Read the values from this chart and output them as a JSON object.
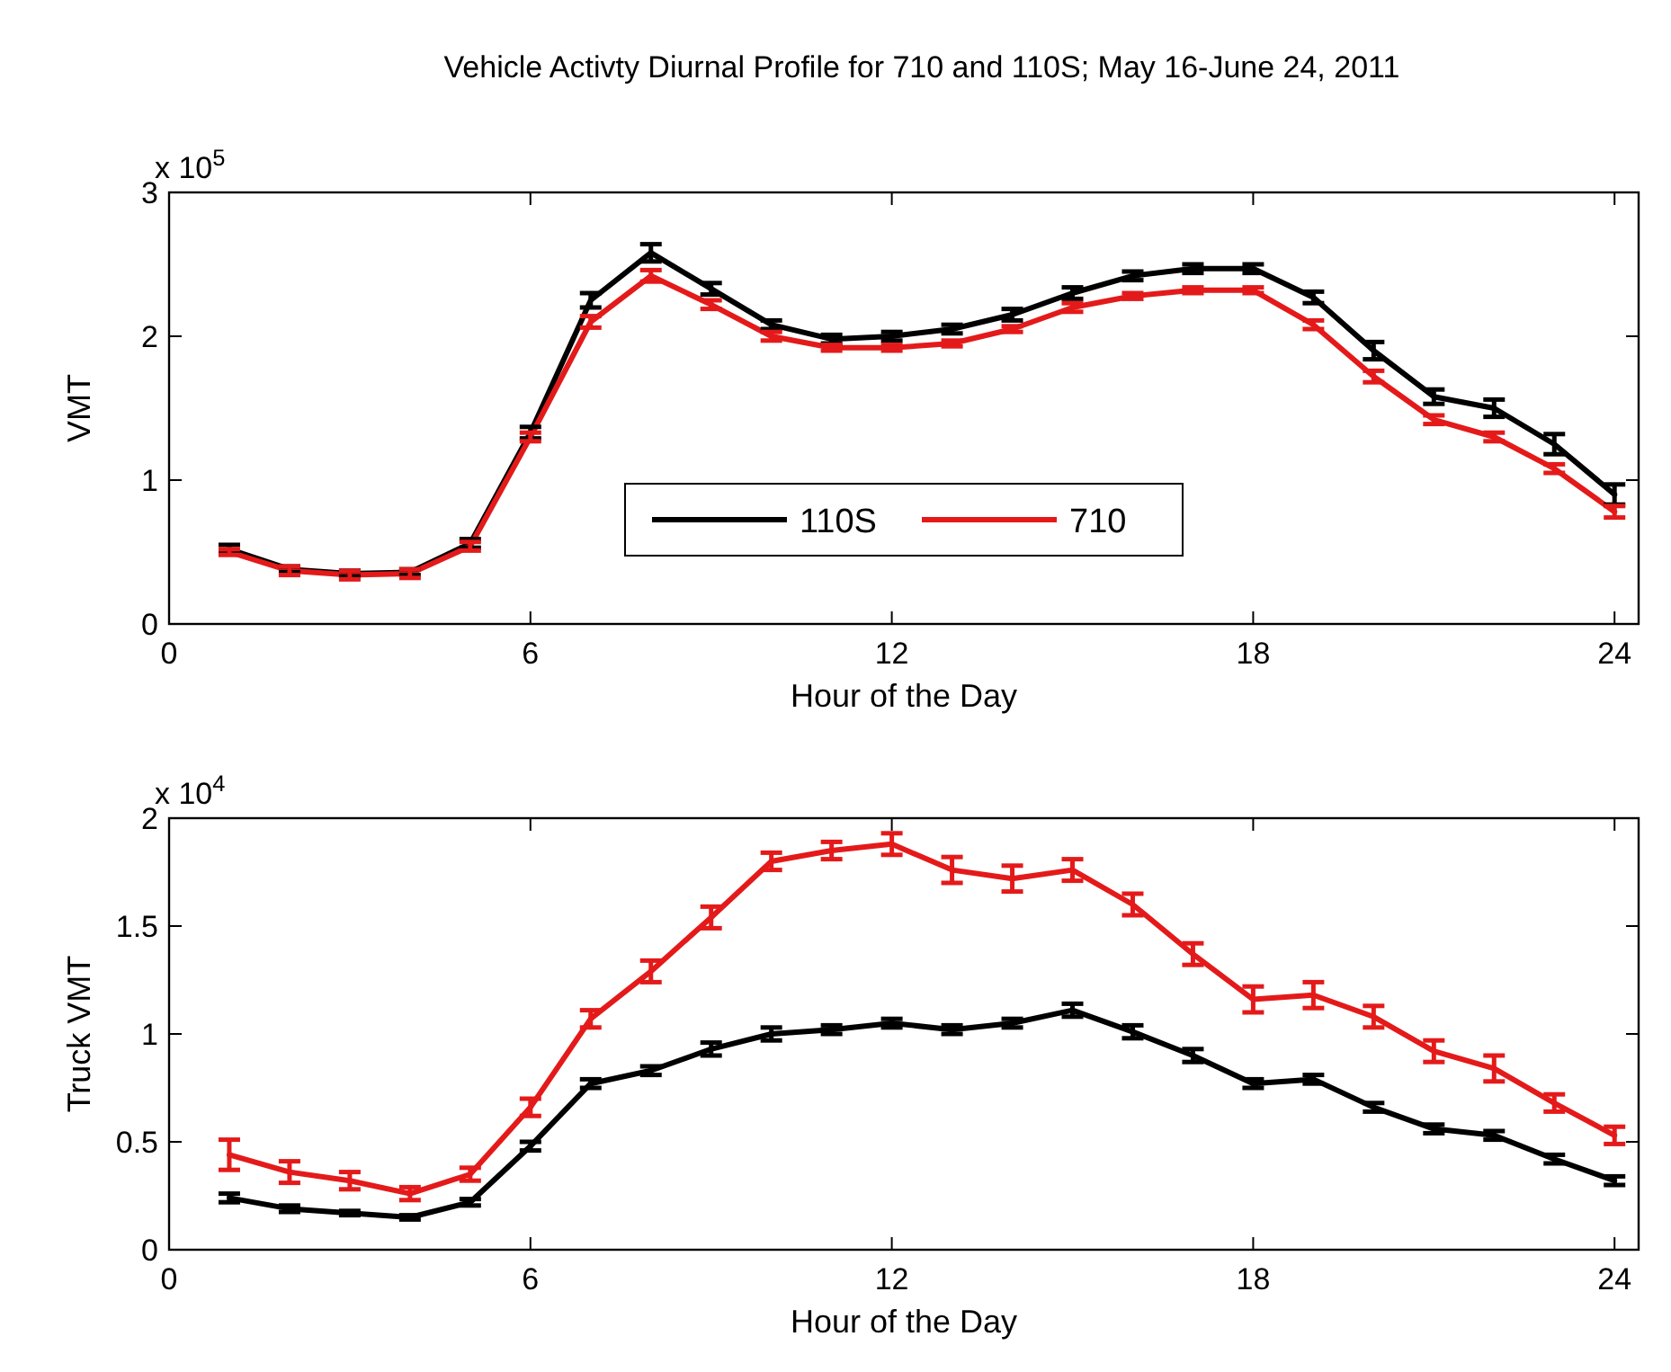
{
  "chart_data": [
    {
      "type": "line",
      "title": "Vehicle Activty Diurnal Profile for 710 and 110S; May 16-June 24, 2011",
      "xlabel": "Hour of the Day",
      "ylabel": "VMT",
      "annotations": [
        "x 10$^{5}$"
      ],
      "x": [
        1,
        2,
        3,
        4,
        5,
        6,
        7,
        8,
        9,
        10,
        11,
        12,
        13,
        14,
        15,
        16,
        17,
        18,
        19,
        20,
        21,
        22,
        23,
        24
      ],
      "xlim": [
        0,
        24.4
      ],
      "xticks": [
        0,
        6,
        12,
        18,
        24
      ],
      "ylim": [
        0,
        3
      ],
      "yticks": [
        0,
        1,
        2,
        3
      ],
      "legend": "bottom",
      "grid": false,
      "marker": "none",
      "line_style": "solid",
      "series": [
        {
          "name": "110S",
          "color": "#000000",
          "values": [
            0.52,
            0.38,
            0.35,
            0.36,
            0.56,
            1.33,
            2.25,
            2.58,
            2.33,
            2.08,
            1.98,
            2.0,
            2.05,
            2.15,
            2.3,
            2.42,
            2.47,
            2.47,
            2.27,
            1.9,
            1.58,
            1.5,
            1.25,
            0.9
          ],
          "errors": [
            0.03,
            0.02,
            0.02,
            0.02,
            0.03,
            0.04,
            0.05,
            0.06,
            0.04,
            0.03,
            0.03,
            0.03,
            0.03,
            0.04,
            0.04,
            0.03,
            0.03,
            0.03,
            0.04,
            0.06,
            0.05,
            0.06,
            0.07,
            0.07
          ]
        },
        {
          "name": "710",
          "color": "#e41a1a",
          "values": [
            0.5,
            0.37,
            0.34,
            0.35,
            0.54,
            1.3,
            2.1,
            2.42,
            2.22,
            2.0,
            1.92,
            1.92,
            1.95,
            2.05,
            2.2,
            2.28,
            2.32,
            2.32,
            2.08,
            1.72,
            1.42,
            1.3,
            1.08,
            0.78
          ],
          "errors": [
            0.02,
            0.03,
            0.03,
            0.03,
            0.03,
            0.03,
            0.04,
            0.04,
            0.03,
            0.03,
            0.02,
            0.02,
            0.02,
            0.02,
            0.03,
            0.02,
            0.02,
            0.02,
            0.03,
            0.04,
            0.03,
            0.03,
            0.03,
            0.04
          ]
        }
      ]
    },
    {
      "type": "line",
      "xlabel": "Hour of the Day",
      "ylabel": "Truck VMT",
      "annotations": [
        "x 10$^{4}$"
      ],
      "x": [
        1,
        2,
        3,
        4,
        5,
        6,
        7,
        8,
        9,
        10,
        11,
        12,
        13,
        14,
        15,
        16,
        17,
        18,
        19,
        20,
        21,
        22,
        23,
        24
      ],
      "xlim": [
        0,
        24.4
      ],
      "xticks": [
        0,
        6,
        12,
        18,
        24
      ],
      "ylim": [
        0,
        2
      ],
      "yticks": [
        0,
        0.5,
        1,
        1.5,
        2
      ],
      "grid": false,
      "marker": "none",
      "line_style": "solid",
      "series": [
        {
          "color": "#000000",
          "values": [
            0.24,
            0.19,
            0.17,
            0.15,
            0.22,
            0.48,
            0.77,
            0.83,
            0.93,
            1.0,
            1.02,
            1.05,
            1.02,
            1.05,
            1.11,
            1.01,
            0.9,
            0.77,
            0.79,
            0.66,
            0.56,
            0.53,
            0.42,
            0.32
          ],
          "errors": [
            0.02,
            0.015,
            0.01,
            0.01,
            0.015,
            0.02,
            0.02,
            0.02,
            0.03,
            0.03,
            0.02,
            0.02,
            0.02,
            0.02,
            0.03,
            0.03,
            0.03,
            0.02,
            0.02,
            0.02,
            0.02,
            0.02,
            0.02,
            0.02
          ]
        },
        {
          "color": "#e41a1a",
          "values": [
            0.44,
            0.36,
            0.32,
            0.26,
            0.35,
            0.66,
            1.07,
            1.29,
            1.54,
            1.8,
            1.85,
            1.88,
            1.76,
            1.72,
            1.76,
            1.6,
            1.37,
            1.16,
            1.18,
            1.08,
            0.92,
            0.84,
            0.68,
            0.53
          ],
          "errors": [
            0.07,
            0.05,
            0.04,
            0.03,
            0.03,
            0.04,
            0.04,
            0.05,
            0.05,
            0.04,
            0.04,
            0.05,
            0.06,
            0.06,
            0.05,
            0.05,
            0.05,
            0.06,
            0.06,
            0.05,
            0.05,
            0.06,
            0.04,
            0.04
          ]
        }
      ]
    }
  ]
}
